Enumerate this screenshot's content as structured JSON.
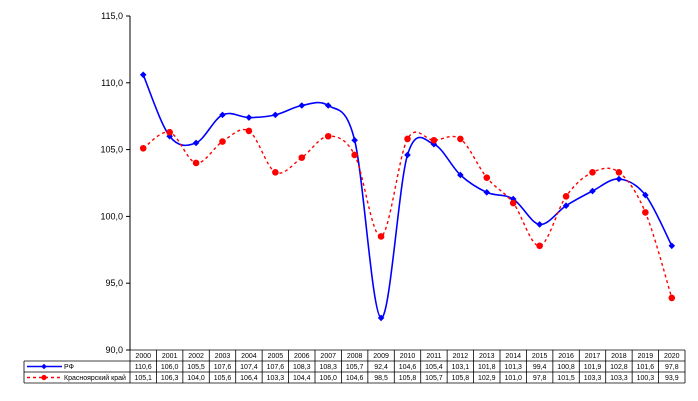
{
  "chart_data": {
    "type": "line",
    "title": "",
    "xlabel": "",
    "ylabel": "",
    "ylim": [
      90,
      115
    ],
    "y_ticks": [
      "90,0",
      "95,0",
      "100,0",
      "105,0",
      "110,0",
      "115,0"
    ],
    "categories": [
      "2000",
      "2001",
      "2002",
      "2003",
      "2004",
      "2005",
      "2006",
      "2007",
      "2008",
      "2009",
      "2010",
      "2011",
      "2012",
      "2013",
      "2014",
      "2015",
      "2016",
      "2017",
      "2018",
      "2019",
      "2020"
    ],
    "legend_placement": "data-table-left",
    "grid": false,
    "series": [
      {
        "name": "РФ",
        "color": "#0000ff",
        "style": "solid",
        "values": [
          110.6,
          106.0,
          105.5,
          107.6,
          107.4,
          107.6,
          108.3,
          108.3,
          105.7,
          92.4,
          104.6,
          105.4,
          103.1,
          101.8,
          101.3,
          99.4,
          100.8,
          101.9,
          102.8,
          101.6,
          97.8
        ],
        "labels": [
          "110,6",
          "106,0",
          "105,5",
          "107,6",
          "107,4",
          "107,6",
          "108,3",
          "108,3",
          "105,7",
          "92,4",
          "104,6",
          "105,4",
          "103,1",
          "101,8",
          "101,3",
          "99,4",
          "100,8",
          "101,9",
          "102,8",
          "101,6",
          "97,8"
        ]
      },
      {
        "name": "Красноярский край",
        "color": "#ff0000",
        "style": "dashed",
        "values": [
          105.1,
          106.3,
          104.0,
          105.6,
          106.4,
          103.3,
          104.4,
          106.0,
          104.6,
          98.5,
          105.8,
          105.7,
          105.8,
          102.9,
          101.0,
          97.8,
          101.5,
          103.3,
          103.3,
          100.3,
          93.9
        ],
        "labels": [
          "105,1",
          "106,3",
          "104,0",
          "105,6",
          "106,4",
          "103,3",
          "104,4",
          "106,0",
          "104,6",
          "98,5",
          "105,8",
          "105,7",
          "105,8",
          "102,9",
          "101,0",
          "97,8",
          "101,5",
          "103,3",
          "103,3",
          "100,3",
          "93,9"
        ]
      }
    ]
  }
}
